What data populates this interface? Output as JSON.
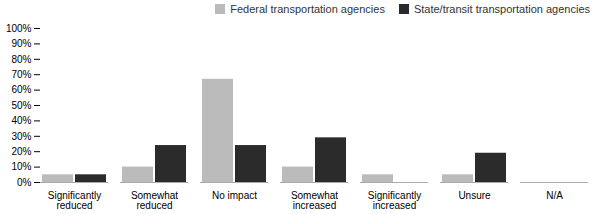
{
  "chart_data": {
    "type": "bar",
    "categories": [
      "Significantly\nreduced",
      "Somewhat\nreduced",
      "No impact",
      "Somewhat\nincreased",
      "Significantly\nincreased",
      "Unsure",
      "N/A"
    ],
    "series": [
      {
        "name": "Federal transportation agencies",
        "color": "#BBBBBB",
        "values": [
          5,
          10,
          67,
          10,
          5,
          5,
          0
        ]
      },
      {
        "name": "State/transit transportation agencies",
        "color": "#2B2B2B",
        "values": [
          5,
          24,
          24,
          29,
          0,
          19,
          0
        ]
      }
    ],
    "ylim": [
      0,
      100
    ],
    "yticks": [
      {
        "value": 0,
        "label": "0%"
      },
      {
        "value": 10,
        "label": "10%"
      },
      {
        "value": 20,
        "label": "20%"
      },
      {
        "value": 30,
        "label": "30%"
      },
      {
        "value": 40,
        "label": "40%"
      },
      {
        "value": 50,
        "label": "50%"
      },
      {
        "value": 60,
        "label": "60%"
      },
      {
        "value": 70,
        "label": "70%"
      },
      {
        "value": 80,
        "label": "80%"
      },
      {
        "value": 90,
        "label": "90%"
      },
      {
        "value": 100,
        "label": "100%"
      }
    ],
    "grid": false,
    "legend": "upper right"
  }
}
